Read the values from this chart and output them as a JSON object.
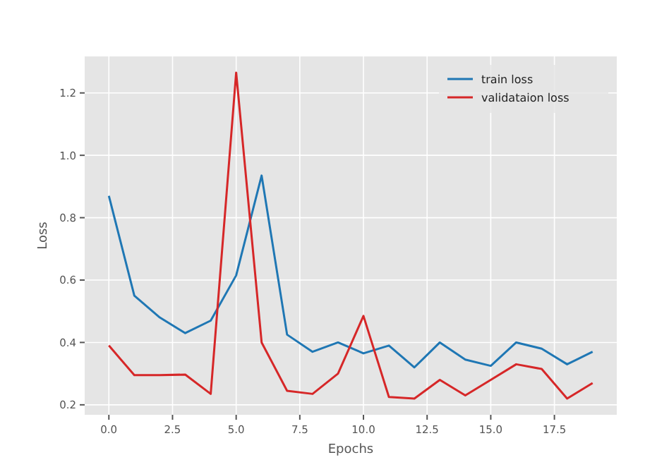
{
  "chart_data": {
    "type": "line",
    "xlabel": "Epochs",
    "ylabel": "Loss",
    "x": [
      0,
      1,
      2,
      3,
      4,
      5,
      6,
      7,
      8,
      9,
      10,
      11,
      12,
      13,
      14,
      15,
      16,
      17,
      18,
      19
    ],
    "series": [
      {
        "name": "train loss",
        "color": "#1f77b4",
        "values": [
          0.87,
          0.55,
          0.48,
          0.43,
          0.47,
          0.615,
          0.935,
          0.425,
          0.37,
          0.4,
          0.365,
          0.39,
          0.32,
          0.4,
          0.345,
          0.325,
          0.4,
          0.38,
          0.33,
          0.37
        ]
      },
      {
        "name": "validataion loss",
        "color": "#d62728",
        "values": [
          0.39,
          0.295,
          0.295,
          0.297,
          0.235,
          1.265,
          0.4,
          0.245,
          0.235,
          0.3,
          0.485,
          0.225,
          0.22,
          0.28,
          0.23,
          0.28,
          0.33,
          0.315,
          0.22,
          0.27
        ]
      }
    ],
    "xlim": [
      -0.95,
      19.95
    ],
    "xticks": [
      {
        "value": 0,
        "label": "0.0"
      },
      {
        "value": 2.5,
        "label": "2.5"
      },
      {
        "value": 5,
        "label": "5.0"
      },
      {
        "value": 7.5,
        "label": "7.5"
      },
      {
        "value": 10,
        "label": "10.0"
      },
      {
        "value": 12.5,
        "label": "12.5"
      },
      {
        "value": 15,
        "label": "15.0"
      },
      {
        "value": 17.5,
        "label": "17.5"
      }
    ],
    "ylim": [
      0.168,
      1.317
    ],
    "yticks": [
      0.2,
      0.4,
      0.6,
      0.8,
      {
        "value": 1,
        "label": "1.0"
      },
      1.2
    ],
    "grid": true,
    "legend": "top right",
    "marker": "none",
    "line_style": "solid"
  }
}
